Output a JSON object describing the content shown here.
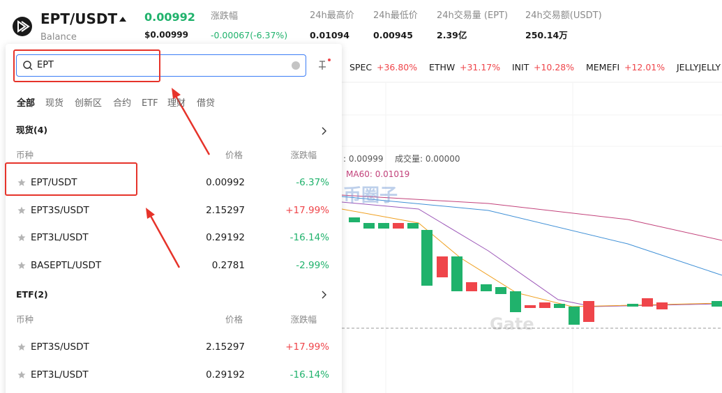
{
  "header": {
    "pair": "EPT/USDT",
    "subtitle": "Balance",
    "price": "0.00992",
    "price_usd": "$0.00999",
    "change_label": "涨跌幅",
    "change": "-0.00067(-6.37%)",
    "stats": [
      {
        "label": "24h最高价",
        "value": "0.01094"
      },
      {
        "label": "24h最低价",
        "value": "0.00945"
      },
      {
        "label": "24h交易量 (EPT)",
        "value": "2.39亿"
      },
      {
        "label": "24h交易额(USDT)",
        "value": "250.14万"
      }
    ]
  },
  "ticker": [
    {
      "name": "SPEC",
      "change": "+36.80%"
    },
    {
      "name": "ETHW",
      "change": "+31.17%"
    },
    {
      "name": "INIT",
      "change": "+10.28%"
    },
    {
      "name": "MEMEFI",
      "change": "+12.01%"
    },
    {
      "name": "JELLYJELLY"
    }
  ],
  "search": {
    "query": "EPT",
    "tabs": [
      "全部",
      "现货",
      "创新区",
      "合约",
      "ETF",
      "理财",
      "借贷"
    ],
    "sections": [
      {
        "title": "现货(4)",
        "columns": [
          "币种",
          "价格",
          "涨跌幅"
        ],
        "rows": [
          {
            "name": "EPT/USDT",
            "price": "0.00992",
            "change": "-6.37%"
          },
          {
            "name": "EPT3S/USDT",
            "price": "2.15297",
            "change": "+17.99%"
          },
          {
            "name": "EPT3L/USDT",
            "price": "0.29192",
            "change": "-16.14%"
          },
          {
            "name": "BASEPTL/USDT",
            "price": "0.2781",
            "change": "-2.99%"
          }
        ]
      },
      {
        "title": "ETF(2)",
        "columns": [
          "币种",
          "价格",
          "涨跌幅"
        ],
        "rows": [
          {
            "name": "EPT3S/USDT",
            "price": "2.15297",
            "change": "+17.99%"
          },
          {
            "name": "EPT3L/USDT",
            "price": "0.29192",
            "change": "-16.14%"
          }
        ]
      }
    ]
  },
  "chart": {
    "info": [
      ": 0.00999",
      "成交量: 0.00000"
    ],
    "ma60": "MA60: 0.01019",
    "watermarks": [
      "币圈子",
      "Gate"
    ]
  }
}
